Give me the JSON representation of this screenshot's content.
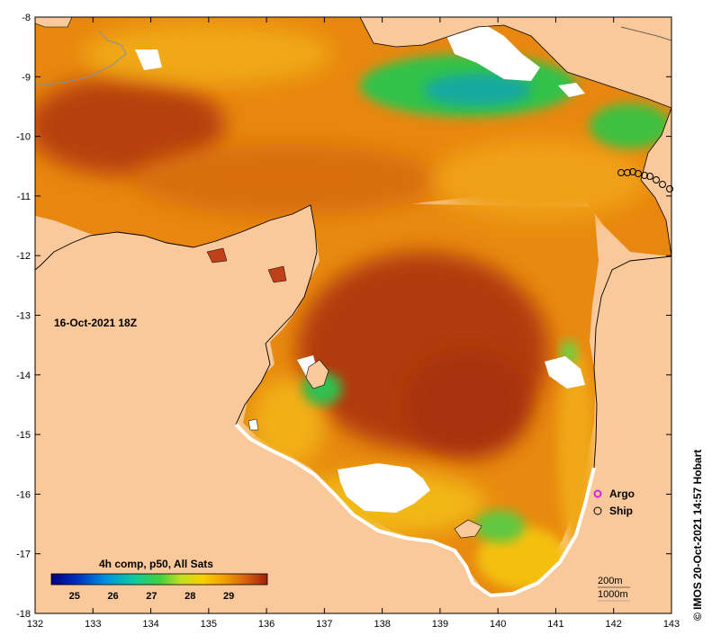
{
  "map": {
    "timestamp": "16-Oct-2021 18Z",
    "credit": "© IMOS 20-Oct-2021 14:57 Hobart",
    "x_ticks": [
      "132",
      "133",
      "134",
      "135",
      "136",
      "137",
      "138",
      "139",
      "140",
      "141",
      "142",
      "143"
    ],
    "y_ticks": [
      "-8",
      "-9",
      "-10",
      "-11",
      "-12",
      "-13",
      "-14",
      "-15",
      "-16",
      "-17",
      "-18"
    ],
    "colorbar": {
      "title": "4h comp, p50, All Sats",
      "labels": [
        "25",
        "26",
        "27",
        "28",
        "29"
      ],
      "range": [
        24.4,
        30.0
      ]
    },
    "legend": {
      "argo": "Argo",
      "ship": "Ship"
    },
    "depth": {
      "contour1": "200m",
      "contour2": "1000m"
    },
    "colors": {
      "land": "#f9c99b",
      "cloud": "#ffffff",
      "sst_hot": "#b83a0b",
      "sst_warm": "#e8850c",
      "sst_mid": "#f2b20a",
      "sst_cool": "#2fc24a",
      "sst_cold": "#16a9a0",
      "argo": "#e020e0"
    }
  }
}
